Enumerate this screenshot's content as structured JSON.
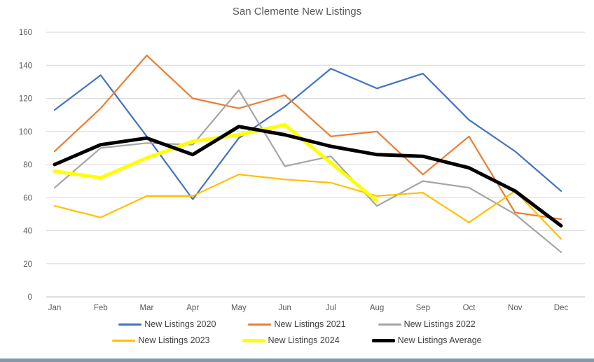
{
  "window": {
    "bottom_border_color": "#8496B0"
  },
  "chart_data": {
    "type": "line",
    "title": "San Clemente New Listings",
    "categories": [
      "Jan",
      "Feb",
      "Mar",
      "Apr",
      "May",
      "Jun",
      "Jul",
      "Aug",
      "Sep",
      "Oct",
      "Nov",
      "Dec"
    ],
    "xlabel": "",
    "ylabel": "",
    "ylim": [
      0,
      160
    ],
    "y_ticks": [
      0,
      20,
      40,
      60,
      80,
      100,
      120,
      140,
      160
    ],
    "grid": true,
    "legend_position": "bottom",
    "gridline_color": "#D9D9D9",
    "axis_line_color": "#BFBFBF",
    "series": [
      {
        "name": "New Listings 2020",
        "color": "#4472C4",
        "thickness": "thin",
        "values": [
          113,
          134,
          97,
          59,
          96,
          115,
          138,
          126,
          135,
          107,
          88,
          64
        ]
      },
      {
        "name": "New Listings 2021",
        "color": "#ED7D31",
        "thickness": "thin",
        "values": [
          88,
          114,
          146,
          120,
          114,
          122,
          97,
          100,
          74,
          97,
          51,
          47
        ]
      },
      {
        "name": "New Listings 2022",
        "color": "#A5A5A5",
        "thickness": "thin",
        "values": [
          66,
          90,
          93,
          92,
          125,
          79,
          85,
          55,
          70,
          66,
          50,
          27
        ]
      },
      {
        "name": "New Listings 2023",
        "color": "#FFC000",
        "thickness": "thin",
        "values": [
          55,
          48,
          61,
          61,
          74,
          71,
          69,
          61,
          63,
          45,
          64,
          35
        ]
      },
      {
        "name": "New Listings 2024",
        "color": "#FFFF00",
        "thickness": "thick",
        "values": [
          76,
          72,
          84,
          94,
          98,
          104,
          81,
          58,
          null,
          null,
          null,
          null
        ]
      },
      {
        "name": "New Listings Average",
        "color": "#000000",
        "thickness": "thick",
        "values": [
          80,
          92,
          96,
          86,
          103,
          98,
          91,
          86,
          85,
          78,
          64,
          43
        ]
      }
    ]
  }
}
